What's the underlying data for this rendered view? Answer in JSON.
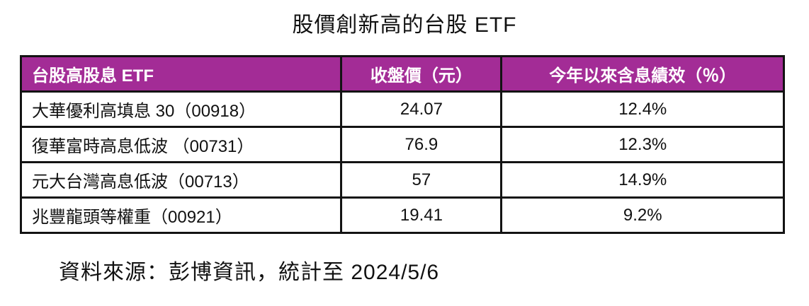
{
  "title": "股價創新高的台股 ETF",
  "table": {
    "columns": {
      "name": "台股高股息 ETF",
      "price": "收盤價（元）",
      "performance": "今年以來含息績效（％）"
    },
    "rows": [
      {
        "name": "大華優利高填息 30（00918）",
        "price": "24.07",
        "performance": "12.4%"
      },
      {
        "name": "復華富時高息低波 （00731）",
        "price": "76.9",
        "performance": "12.3%"
      },
      {
        "name": "元大台灣高息低波（00713）",
        "price": "57",
        "performance": "14.9%"
      },
      {
        "name": "兆豐龍頭等權重（00921）",
        "price": "19.41",
        "performance": "9.2%"
      }
    ]
  },
  "footer": {
    "source_note": "資料來源：彭博資訊，統計至 2024/5/6"
  },
  "colors": {
    "header_bg": "#A32C96",
    "header_text": "#FFFFFF",
    "border": "#131313",
    "background": "#FFFFFF"
  },
  "chart_data": {
    "type": "table",
    "title": "股價創新高的台股 ETF",
    "columns": [
      "台股高股息 ETF",
      "收盤價（元）",
      "今年以來含息績效（％）"
    ],
    "rows": [
      [
        "大華優利高填息 30（00918）",
        24.07,
        "12.4%"
      ],
      [
        "復華富時高息低波 （00731）",
        76.9,
        "12.3%"
      ],
      [
        "元大台灣高息低波（00713）",
        57,
        "14.9%"
      ],
      [
        "兆豐龍頭等權重（00921）",
        19.41,
        "9.2%"
      ]
    ],
    "source_note": "資料來源：彭博資訊，統計至 2024/5/6",
    "layout_hints": {
      "header_background": "#A32C96",
      "header_text_color": "#FFFFFF",
      "grid": true,
      "first_column_align": "left",
      "value_columns_align": "center"
    }
  }
}
